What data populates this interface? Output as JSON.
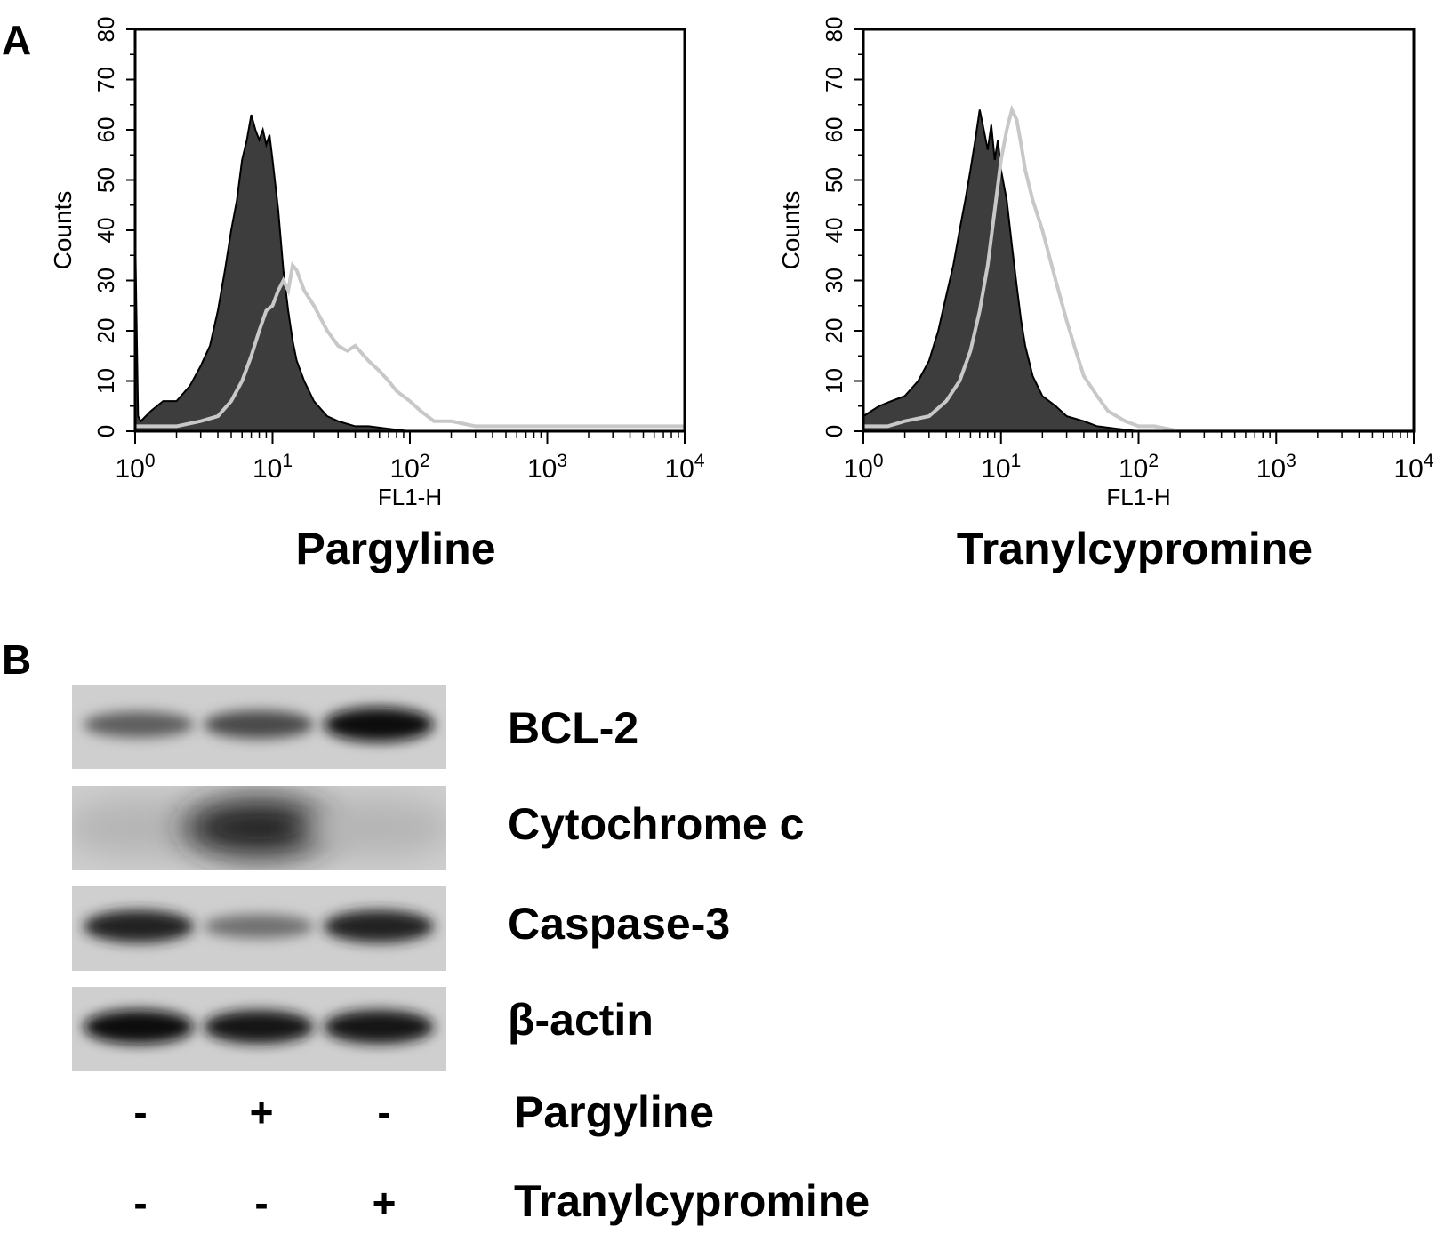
{
  "panel_a": {
    "letter": "A"
  },
  "panel_b": {
    "letter": "B"
  },
  "chart_data": [
    {
      "type": "area",
      "title": "Pargyline",
      "xlabel": "FL1-H",
      "ylabel": "Counts",
      "xscale": "log",
      "xlim": [
        1,
        10000
      ],
      "ylim": [
        0,
        80
      ],
      "xticks": [
        "10^0",
        "10^1",
        "10^2",
        "10^3",
        "10^4"
      ],
      "yticks": [
        0,
        10,
        20,
        30,
        40,
        50,
        60,
        70,
        80
      ],
      "grid": false,
      "colors": {
        "filled": "#3d3d3d",
        "overlay": "#c8c8c8"
      },
      "series": [
        {
          "style": "filled-dark",
          "x": [
            1,
            1.05,
            1.1,
            1.3,
            1.6,
            2,
            2.5,
            3,
            3.5,
            4,
            4.5,
            5,
            5.5,
            6,
            6.5,
            7,
            7.5,
            8,
            8.5,
            9,
            9.5,
            10,
            11,
            12,
            13,
            14,
            15,
            17,
            20,
            25,
            30,
            40,
            50,
            70,
            100,
            1000,
            10000
          ],
          "y": [
            40,
            3,
            2,
            4,
            6,
            6,
            9,
            13,
            17,
            24,
            32,
            40,
            46,
            54,
            58,
            63,
            60,
            58,
            60,
            57,
            59,
            54,
            44,
            32,
            24,
            18,
            14,
            10,
            6,
            3,
            2,
            1,
            1,
            0.5,
            0,
            0,
            0
          ]
        },
        {
          "style": "outline-light",
          "x": [
            1,
            1.3,
            2,
            3,
            4,
            5,
            6,
            7,
            8,
            9,
            10,
            11,
            12,
            13,
            14,
            15,
            17,
            20,
            25,
            30,
            35,
            40,
            50,
            60,
            70,
            80,
            100,
            120,
            150,
            200,
            300,
            500,
            1000,
            2000,
            5000,
            10000
          ],
          "y": [
            1,
            1,
            1,
            2,
            3,
            6,
            10,
            15,
            20,
            24,
            25,
            28,
            30,
            28,
            33,
            32,
            28,
            25,
            20,
            17,
            16,
            17,
            14,
            12,
            10,
            8,
            6,
            4,
            2,
            2,
            1,
            1,
            1,
            1,
            1,
            1
          ]
        }
      ]
    },
    {
      "type": "area",
      "title": "Tranylcypromine",
      "xlabel": "FL1-H",
      "ylabel": "Counts",
      "xscale": "log",
      "xlim": [
        1,
        10000
      ],
      "ylim": [
        0,
        80
      ],
      "xticks": [
        "10^0",
        "10^1",
        "10^2",
        "10^3",
        "10^4"
      ],
      "yticks": [
        0,
        10,
        20,
        30,
        40,
        50,
        60,
        70,
        80
      ],
      "grid": false,
      "colors": {
        "filled": "#3d3d3d",
        "overlay": "#c8c8c8"
      },
      "series": [
        {
          "style": "filled-dark",
          "x": [
            1,
            1.3,
            1.6,
            2,
            2.5,
            3,
            3.5,
            4,
            4.5,
            5,
            5.5,
            6,
            6.5,
            7,
            7.5,
            8,
            8.5,
            9,
            9.5,
            10,
            11,
            12,
            13,
            14,
            15,
            17,
            20,
            25,
            30,
            40,
            50,
            70,
            100,
            1000,
            10000
          ],
          "y": [
            3,
            5,
            6,
            7,
            10,
            14,
            20,
            27,
            33,
            40,
            46,
            52,
            58,
            64,
            60,
            56,
            61,
            54,
            58,
            52,
            46,
            37,
            29,
            22,
            17,
            11,
            7,
            5,
            3,
            2,
            1,
            0.5,
            0,
            0,
            0
          ]
        },
        {
          "style": "outline-light",
          "x": [
            1,
            1.5,
            2,
            3,
            4,
            5,
            6,
            7,
            8,
            9,
            10,
            11,
            12,
            13,
            14,
            15,
            17,
            20,
            25,
            30,
            35,
            40,
            50,
            60,
            80,
            100,
            130,
            200,
            1000,
            10000
          ],
          "y": [
            1,
            1,
            2,
            3,
            6,
            10,
            16,
            24,
            33,
            44,
            54,
            60,
            64,
            62,
            57,
            52,
            46,
            40,
            30,
            22,
            16,
            11,
            7,
            4,
            2,
            1,
            1,
            0,
            0,
            0
          ]
        }
      ]
    }
  ],
  "blots": [
    {
      "label": "BCL-2",
      "intensity": [
        0.55,
        0.65,
        0.95
      ]
    },
    {
      "label": "Cytochrome c",
      "intensity": [
        0.1,
        0.85,
        0.1
      ]
    },
    {
      "label": "Caspase-3",
      "intensity": [
        0.85,
        0.45,
        0.85
      ]
    },
    {
      "label": "β-actin",
      "intensity": [
        0.95,
        0.9,
        0.92
      ]
    }
  ],
  "conditions": [
    {
      "label": "Pargyline",
      "signs": [
        "-",
        "+",
        "-"
      ]
    },
    {
      "label": "Tranylcypromine",
      "signs": [
        "-",
        "-",
        "+"
      ]
    }
  ]
}
